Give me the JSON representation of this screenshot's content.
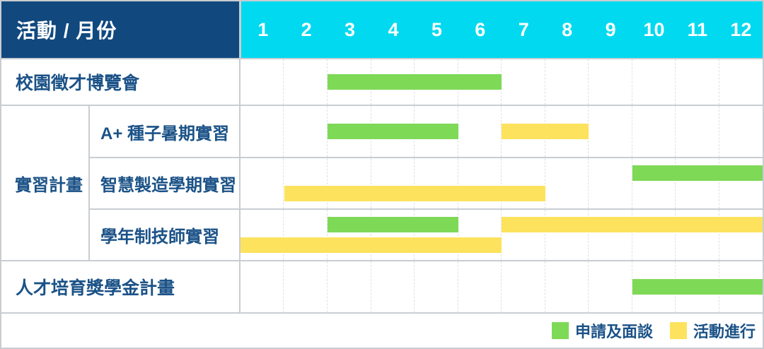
{
  "header": {
    "corner_label": "活動 / 月份",
    "months": [
      "1",
      "2",
      "3",
      "4",
      "5",
      "6",
      "7",
      "8",
      "9",
      "10",
      "11",
      "12"
    ]
  },
  "legend": {
    "items": [
      {
        "key": "apply",
        "label": "申請及面談",
        "color": "#7ED957"
      },
      {
        "key": "ongoing",
        "label": "活動進行",
        "color": "#FDE25D"
      }
    ]
  },
  "colors": {
    "corner_header_bg": "#11497F",
    "month_header_bg": "#00D9EF",
    "label_text": "#1B5287",
    "apply_bar_green": "#7ED957",
    "ongoing_bar_yellow": "#FDE25D",
    "grid_border": "#C9CDD2",
    "month_divider": "#E0E0E0"
  },
  "chart_data": {
    "type": "gantt",
    "title": "活動 / 月份",
    "x_unit": "month",
    "x_ticks": [
      "1",
      "2",
      "3",
      "4",
      "5",
      "6",
      "7",
      "8",
      "9",
      "10",
      "11",
      "12"
    ],
    "x_range": [
      1,
      12
    ],
    "legend": {
      "apply": "申請及面談",
      "ongoing": "活動進行"
    },
    "rows": [
      {
        "group": "",
        "label": "校園徵才博覽會",
        "bars": [
          {
            "category": "apply",
            "start_month": 3,
            "end_month": 6,
            "lane": "middle"
          }
        ]
      },
      {
        "group": "實習計畫",
        "label": "A+ 種子暑期實習",
        "bars": [
          {
            "category": "apply",
            "start_month": 3,
            "end_month": 5,
            "lane": "middle"
          },
          {
            "category": "ongoing",
            "start_month": 7,
            "end_month": 8,
            "lane": "middle"
          }
        ]
      },
      {
        "group": "實習計畫",
        "label": "智慧製造學期實習",
        "bars": [
          {
            "category": "apply",
            "start_month": 10,
            "end_month": 12,
            "lane": "top"
          },
          {
            "category": "ongoing",
            "start_month": 2,
            "end_month": 7,
            "lane": "bottom"
          }
        ]
      },
      {
        "group": "實習計畫",
        "label": "學年制技師實習",
        "bars": [
          {
            "category": "apply",
            "start_month": 3,
            "end_month": 5,
            "lane": "top"
          },
          {
            "category": "ongoing",
            "start_month": 7,
            "end_month": 12,
            "lane": "top"
          },
          {
            "category": "ongoing",
            "start_month": 1,
            "end_month": 6,
            "lane": "bottom"
          }
        ]
      },
      {
        "group": "",
        "label": "人才培育獎學金計畫",
        "bars": [
          {
            "category": "apply",
            "start_month": 10,
            "end_month": 12,
            "lane": "middle"
          }
        ]
      }
    ]
  }
}
